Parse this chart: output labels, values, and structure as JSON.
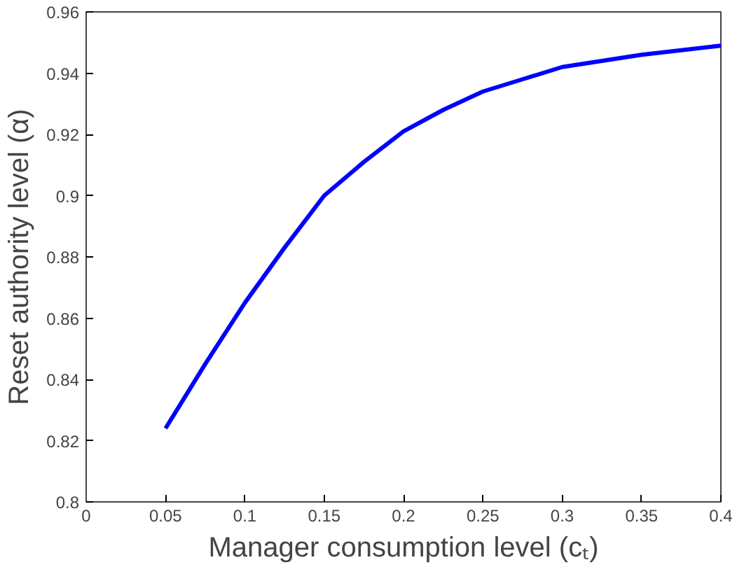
{
  "chart_data": {
    "type": "line",
    "xlabel": "Manager consumption level (cₜ)",
    "ylabel": "Reset authority level (α)",
    "x": [
      0.05,
      0.075,
      0.1,
      0.125,
      0.15,
      0.175,
      0.2,
      0.225,
      0.25,
      0.275,
      0.3,
      0.35,
      0.4
    ],
    "series": [
      {
        "color": "#0000ff",
        "values": [
          0.824,
          0.845,
          0.865,
          0.883,
          0.9,
          0.911,
          0.921,
          0.928,
          0.934,
          0.938,
          0.942,
          0.946,
          0.949
        ]
      }
    ],
    "xlim": [
      0,
      0.4
    ],
    "ylim": [
      0.8,
      0.96
    ],
    "xticks": [
      0,
      0.05,
      0.1,
      0.15,
      0.2,
      0.25,
      0.3,
      0.35,
      0.4
    ],
    "yticks": [
      0.8,
      0.82,
      0.84,
      0.86,
      0.88,
      0.9,
      0.92,
      0.94,
      0.96
    ],
    "grid": false,
    "marker": "none",
    "line_style": "solid"
  }
}
